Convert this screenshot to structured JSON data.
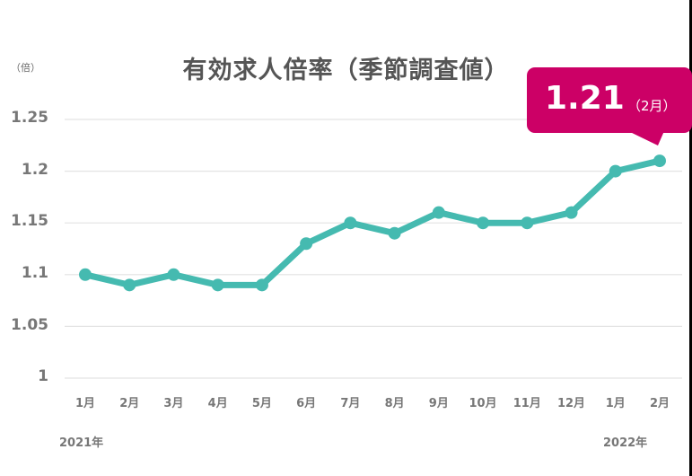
{
  "chart_data": {
    "type": "line",
    "title": "有効求人倍率（季節調査値）",
    "ylabel": "（倍）",
    "xlabel": "",
    "ylim": [
      1,
      1.25
    ],
    "yticks": [
      "1.25",
      "1.2",
      "1.15",
      "1.1",
      "1.05",
      "1"
    ],
    "grid": true,
    "categories": [
      "1月",
      "2月",
      "3月",
      "4月",
      "5月",
      "6月",
      "7月",
      "8月",
      "9月",
      "10月",
      "11月",
      "12月",
      "1月",
      "2月"
    ],
    "year_labels": [
      "2021年",
      "2022年"
    ],
    "series": [
      {
        "name": "有効求人倍率",
        "color": "#45bab0",
        "values": [
          1.1,
          1.09,
          1.1,
          1.09,
          1.09,
          1.13,
          1.15,
          1.14,
          1.16,
          1.15,
          1.15,
          1.16,
          1.2,
          1.21
        ]
      }
    ],
    "annotation": {
      "value": "1.21",
      "label": "（2月）",
      "color": "#cc0066"
    }
  }
}
